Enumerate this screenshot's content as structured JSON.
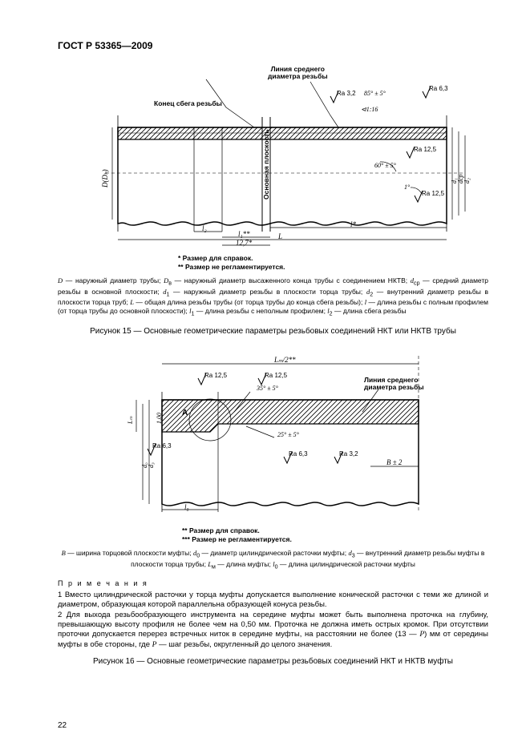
{
  "doc_id": "ГОСТ Р 53365—2009",
  "page_num": "22",
  "fig15": {
    "label_line_avg": "Линия среднего\nдиаметра резьбы",
    "label_end": "Конец сбега резьбы",
    "ra32": "Ra 3,2",
    "ra63": "Ra 6,3",
    "ra125": "Ra 12,5",
    "ang85": "85° ± 5°",
    "ang60": "60° ± 5°",
    "ang1": "1°",
    "taper": "⊲1:16",
    "base_plane": "Основная плоскость",
    "dim_D": "D(Dₕ)",
    "dim_d1": "d₁",
    "dim_dcp": "dср",
    "dim_d2": "d₂",
    "dim_l2": "l₂",
    "dim_l1star": "l₁**",
    "dim_lstar": "l*",
    "dim_L": "L",
    "dim_127": "12,7*",
    "foot1": "* Размер для справок.",
    "foot2": "** Размер не регламентируется.",
    "defs": "<i>D</i> — наружный диаметр трубы; <i>D</i><sub>в</sub> — наружный диаметр высаженного конца трубы с соединением НКТВ; <i>d</i><sub>ср</sub> — средний диаметр резьбы в основной плоскости; <i>d</i><sub>1</sub> — наружный диаметр резьбы в плоскости торца трубы; <i>d</i><sub>2</sub> — внутренний диаметр резьбы в плоскости торца труб; <i>L</i> — общая длина резьбы трубы (от торца трубы до конца сбега резьбы); <i>l</i> — длина резьбы с полным профилем (от торца трубы до основной плоскости); <i>l</i><sub>1</sub> — длина резьбы с неполным профилем; <i>l</i><sub>2</sub> — длина сбега резьбы",
    "caption": "Рисунок 15 — Основные геометрические параметры резьбовых соединений НКТ или НКТВ трубы"
  },
  "fig16": {
    "ra125": "Ra 12,5",
    "ra63": "Ra 6,3",
    "ra32": "Ra 3,2",
    "label_A": "А",
    "ang35": "35° ± 5°",
    "ang25": "25° ± 5°",
    "label_line_avg": "Линия среднего\nдиаметра резьбы",
    "dim_Lm2": "Lₘ/2**",
    "dim_Lm": "Lₘ",
    "dim_d0": "d₀",
    "dim_d3": "d₃",
    "dim_B": "В ± 2",
    "dim_l0": "l₀",
    "dim_100": "1,00",
    "foot1bold": "** Размер для справок.",
    "foot2bold": "*** Размер не регламентируется.",
    "defs": "<i>В</i> — ширина торцовой плоскости муфты; <i>d</i><sub>0</sub> — диаметр цилиндрической расточки муфты; <i>d</i><sub>3</sub> — внутренний диаметр резьбы муфты в плоскости торца трубы; <i>L</i><sub>м</sub> — длина муфты; <i>l</i><sub>0</sub> — длина цилиндрической расточки муфты",
    "notes_label": "П р и м е ч а н и я",
    "note1": "1 Вместо цилиндрической расточки у торца муфты допускается выполнение конической расточки с теми же длиной и диаметром, образующая которой параллельна образующей конуса резьбы.",
    "note2": "2 Для выхода резьбообразующего инструмента на середине муфты может быть выполнена проточка на глубину, превышающую высоту профиля не более чем на 0,50 мм. Проточка не должна иметь острых кромок. При отсутствии проточки допускается перерез встречных ниток в середине муфты, на расстоянии не более (13 — <i>Р</i>) мм от середины муфты в обе стороны, где <i>Р</i> — шаг резьбы, округленный до целого значения.",
    "caption": "Рисунок 16 — Основные геометрические параметры резьбовых соединений НКТ и НКТВ муфты"
  },
  "style": {
    "line_color": "#000000",
    "hatch_color": "#000000",
    "dash": "4 3"
  }
}
